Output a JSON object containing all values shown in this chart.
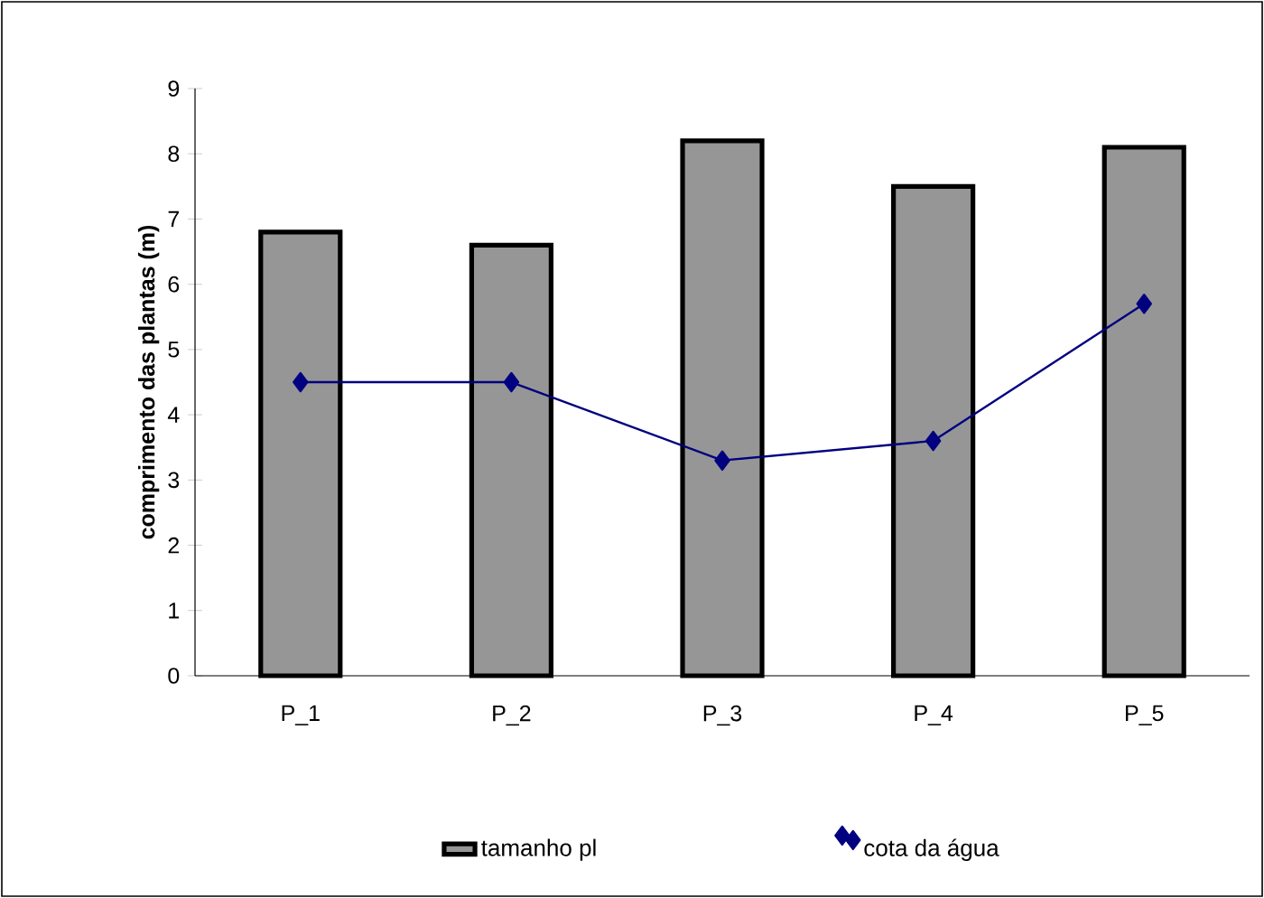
{
  "chart_data": {
    "type": "bar",
    "ylabel": "comprimento das plantas (m)",
    "categories": [
      "P_1",
      "P_2",
      "P_3",
      "P_4",
      "P_5"
    ],
    "series": [
      {
        "name": "tamanho pl",
        "color": "#969696",
        "values": [
          6.8,
          6.6,
          8.2,
          7.5,
          8.1
        ]
      },
      {
        "name": "cota da água",
        "type": "line",
        "color": "#000080",
        "marker": "diamond",
        "values": [
          4.5,
          4.5,
          3.3,
          3.6,
          5.7
        ]
      }
    ],
    "ylim": [
      0,
      9
    ],
    "yticks": [
      0,
      1,
      2,
      3,
      4,
      5,
      6,
      7,
      8,
      9
    ],
    "grid": false,
    "legend": "bottom"
  }
}
